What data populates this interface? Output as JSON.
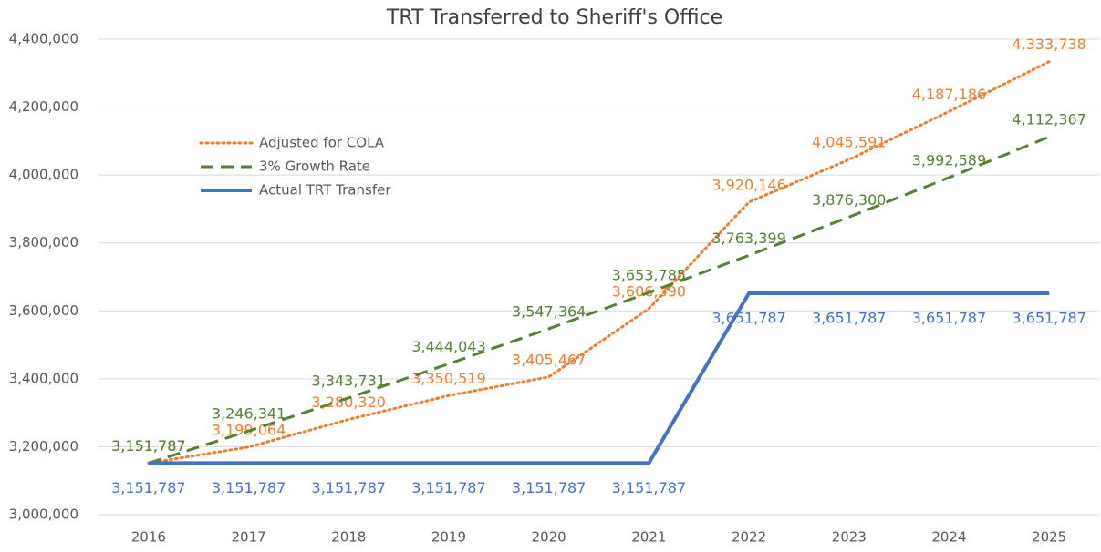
{
  "chart_data": {
    "type": "line",
    "title": "TRT Transferred to Sheriff's Office",
    "categories": [
      "2016",
      "2017",
      "2018",
      "2019",
      "2020",
      "2021",
      "2022",
      "2023",
      "2024",
      "2025"
    ],
    "series": [
      {
        "name": "Adjusted for COLA",
        "color": "#ED7D31",
        "style": "dotted",
        "values": [
          3151787,
          3199064,
          3280320,
          3350519,
          3405467,
          3606390,
          3920146,
          4045591,
          4187186,
          4333738
        ],
        "value_labels": [
          "3,151,787",
          "3,199,064",
          "3,280,320",
          "3,350,519",
          "3,405,467",
          "3,606,390",
          "3,920,146",
          "4,045,591",
          "4,187,186",
          "4,333,738"
        ]
      },
      {
        "name": "3% Growth Rate",
        "color": "#548235",
        "style": "dashed",
        "values": [
          3151787,
          3246341,
          3343731,
          3444043,
          3547364,
          3653785,
          3763399,
          3876300,
          3992589,
          4112367
        ],
        "value_labels": [
          "3,151,787",
          "3,246,341",
          "3,343,731",
          "3,444,043",
          "3,547,364",
          "3,653,785",
          "3,763,399",
          "3,876,300",
          "3,992,589",
          "4,112,367"
        ]
      },
      {
        "name": "Actual TRT Transfer",
        "color": "#4472C4",
        "style": "solid",
        "values": [
          3151787,
          3151787,
          3151787,
          3151787,
          3151787,
          3151787,
          3651787,
          3651787,
          3651787,
          3651787
        ],
        "value_labels": [
          "3,151,787",
          "3,151,787",
          "3,151,787",
          "3,151,787",
          "3,151,787",
          "3,151,787",
          "3,651,787",
          "3,651,787",
          "3,651,787",
          "3,651,787"
        ]
      }
    ],
    "ylim": [
      3000000,
      4400000
    ],
    "yticks": [
      {
        "value": 3000000,
        "label": "3,000,000"
      },
      {
        "value": 3200000,
        "label": "3,200,000"
      },
      {
        "value": 3400000,
        "label": "3,400,000"
      },
      {
        "value": 3600000,
        "label": "3,600,000"
      },
      {
        "value": 3800000,
        "label": "3,800,000"
      },
      {
        "value": 4000000,
        "label": "4,000,000"
      },
      {
        "value": 4200000,
        "label": "4,200,000"
      },
      {
        "value": 4400000,
        "label": "4,400,000"
      }
    ],
    "grid": true,
    "legend": "upper left"
  }
}
